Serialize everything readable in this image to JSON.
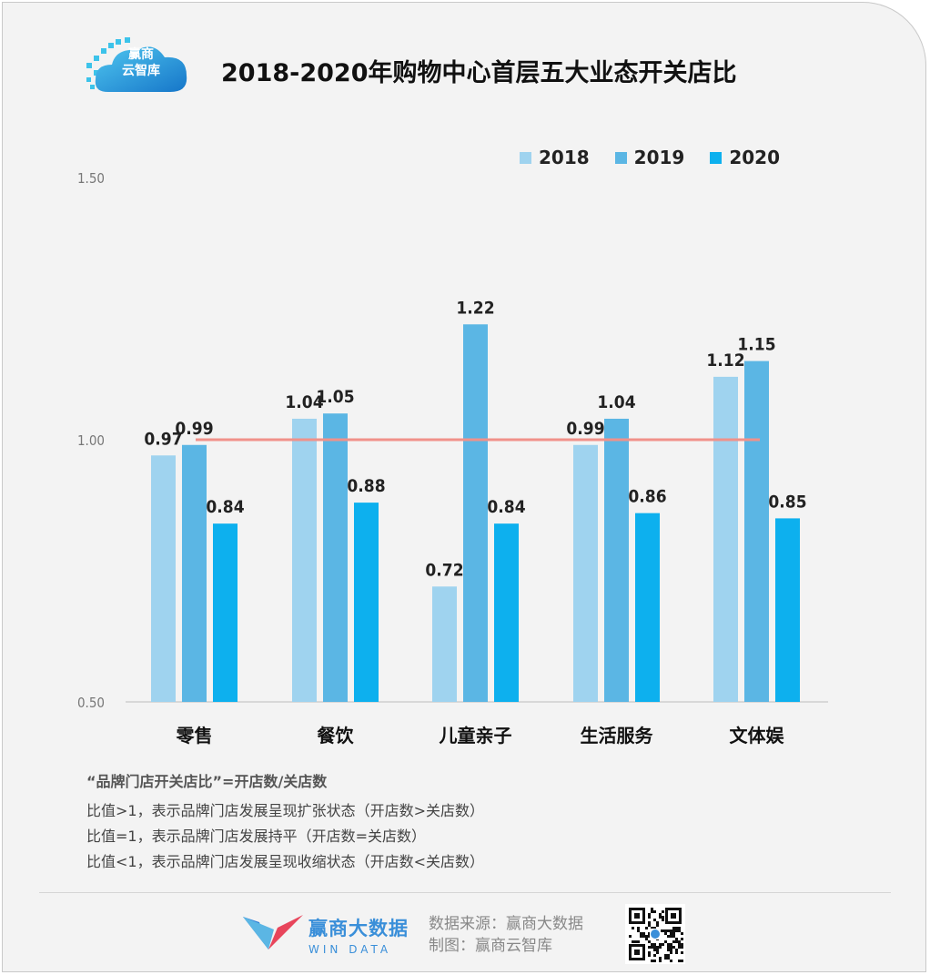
{
  "logo": {
    "text": "赢商\n云智库"
  },
  "title": "2018-2020年购物中心首层五大业态开关店比",
  "legend": [
    {
      "name": "2018",
      "color": "#9fd3ef"
    },
    {
      "name": "2019",
      "color": "#5bb6e4"
    },
    {
      "name": "2020",
      "color": "#0db0ee"
    }
  ],
  "chart_data": {
    "type": "bar",
    "title": "2018-2020年购物中心首层五大业态开关店比",
    "categories": [
      "零售",
      "餐饮",
      "儿童亲子",
      "生活服务",
      "文体娱"
    ],
    "series": [
      {
        "name": "2018",
        "values": [
          0.97,
          1.04,
          0.72,
          0.99,
          1.12
        ],
        "labels": [
          "0.97",
          "1.04",
          "0.72",
          "0.99",
          "1.12"
        ]
      },
      {
        "name": "2019",
        "values": [
          0.99,
          1.05,
          1.22,
          1.04,
          1.15
        ],
        "labels": [
          "0.99",
          "1.05",
          "1.22",
          "1.04",
          "1.15"
        ]
      },
      {
        "name": "2020",
        "values": [
          0.84,
          0.88,
          0.84,
          0.86,
          0.85
        ],
        "labels": [
          "0.84",
          "0.88",
          "0.84",
          "0.86",
          "0.85"
        ]
      }
    ],
    "ylim": [
      0.5,
      1.5
    ],
    "yticks": [
      "0.50",
      "1.00",
      "1.50"
    ],
    "reference_line": 1.0,
    "reference_color": "#f0918a",
    "legend_position": "top-right",
    "grid": false
  },
  "notes": {
    "head": "“品牌门店开关店比”=开店数/关店数",
    "lines": [
      "比值>1，表示品牌门店发展呈现扩张状态（开店数>关店数）",
      "比值=1，表示品牌门店发展持平（开店数=关店数）",
      "比值<1，表示品牌门店发展呈现收缩状态（开店数<关店数）"
    ]
  },
  "footer": {
    "brand_cn": "赢商大数据",
    "brand_en": "WIN DATA",
    "source": "数据来源：赢商大数据",
    "made_by": "制图：赢商云智库"
  }
}
